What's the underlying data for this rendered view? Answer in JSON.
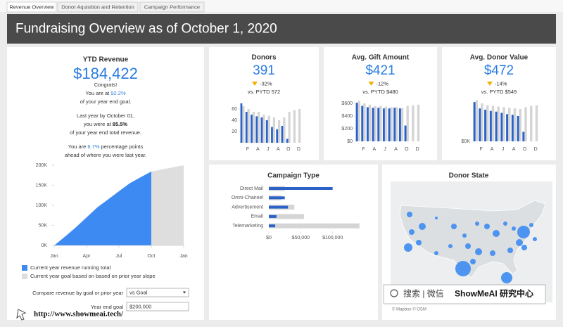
{
  "tabs": [
    "Revenue Overview",
    "Donor Aquisition and Retention",
    "Campaign Performance"
  ],
  "header": {
    "title": "Fundraising Overview as of October 1, 2020"
  },
  "ytd": {
    "title": "YTD Revenue",
    "value": "$184,422",
    "lines": [
      [
        "Congrats!"
      ],
      [
        "You are at ",
        "92.2%"
      ],
      [
        "of your year end goal."
      ],
      [
        "Last year by October 01,"
      ],
      [
        "you were at ",
        "85.5%"
      ],
      [
        "of your year end total revenue."
      ],
      [
        "You are ",
        "6.7%",
        " percentage points"
      ],
      [
        "ahead of where you were last year."
      ]
    ]
  },
  "controls": {
    "compare_label": "Compare revenue  by goal or prior year",
    "compare_value": "vs Goal",
    "goal_label": "Year end goal",
    "goal_value": "$200,000"
  },
  "map": {
    "title": "Donor State",
    "attribution": "© Mapbox © OSM"
  },
  "watermark": {
    "search": "搜索 | 微信",
    "brand": "ShowMeAI 研究中心",
    "url": "http://www.showmeai.tech/"
  },
  "chart_data": [
    {
      "type": "area",
      "xlim": [
        0,
        12
      ],
      "xticks": [
        {
          "value": 0,
          "label": "Jan"
        },
        {
          "value": 3,
          "label": "Apr"
        },
        {
          "value": 6,
          "label": "Jul"
        },
        {
          "value": 9,
          "label": "Oct"
        },
        {
          "value": 12,
          "label": "Jan"
        }
      ],
      "ylim": [
        0,
        200000
      ],
      "yticks": [
        {
          "value": 0,
          "label": "0K"
        },
        {
          "value": 50000,
          "label": "50K"
        },
        {
          "value": 100000,
          "label": "100K"
        },
        {
          "value": 150000,
          "label": "150K"
        },
        {
          "value": 200000,
          "label": "200K"
        }
      ],
      "series": [
        {
          "name": "Current year goal based on based on prior year slope",
          "color": "#dedede",
          "x": [
            9,
            12
          ],
          "values": [
            184422,
            200000
          ]
        },
        {
          "name": "Current year revenue running total",
          "color": "#3d8bf2",
          "x": [
            0,
            1,
            2,
            3,
            4,
            5,
            6,
            7,
            8,
            9
          ],
          "values": [
            0,
            22000,
            45000,
            70000,
            95000,
            115000,
            135000,
            155000,
            170000,
            184422
          ]
        }
      ]
    },
    {
      "type": "bar",
      "title": "Donors",
      "kpi": "391",
      "change": "-32%",
      "comparison": "vs. PYTD 572",
      "categories": [
        null,
        "F",
        null,
        "A",
        null,
        "J",
        null,
        "A",
        null,
        "O",
        null,
        "D"
      ],
      "ylim": [
        0,
        75
      ],
      "yticks": [
        20,
        40,
        60
      ],
      "series": [
        {
          "color": "#2a62c9",
          "values": [
            70,
            55,
            50,
            47,
            45,
            40,
            28,
            24,
            30,
            7,
            null,
            null
          ]
        },
        {
          "color": "#d5d5d5",
          "values": [
            65,
            60,
            55,
            55,
            50,
            48,
            45,
            40,
            45,
            55,
            58,
            60
          ]
        }
      ]
    },
    {
      "type": "bar",
      "title": "Avg. Gift Amount",
      "kpi": "$421",
      "change": "-12%",
      "comparison": "vs. PYTD $480",
      "categories": [
        null,
        "F",
        null,
        "A",
        null,
        "J",
        null,
        "A",
        null,
        "O",
        null,
        "D"
      ],
      "ylim": [
        0,
        700
      ],
      "yticks": [
        {
          "value": 0,
          "label": "$0"
        },
        {
          "value": 200,
          "label": "$200"
        },
        {
          "value": 400,
          "label": "$400"
        },
        {
          "value": 600,
          "label": "$600"
        }
      ],
      "series": [
        {
          "color": "#2a62c9",
          "values": [
            610,
            560,
            540,
            530,
            530,
            520,
            520,
            530,
            520,
            250,
            null,
            null
          ]
        },
        {
          "color": "#d5d5d5",
          "values": [
            640,
            600,
            580,
            560,
            560,
            550,
            540,
            540,
            530,
            560,
            570,
            580
          ]
        }
      ]
    },
    {
      "type": "bar",
      "title": "Avg. Donor Value",
      "kpi": "$472",
      "change": "-14%",
      "comparison": "vs. PYTD $549",
      "categories": [
        null,
        "F",
        null,
        "A",
        null,
        "J",
        null,
        "A",
        null,
        "O",
        null,
        "D"
      ],
      "ylim": [
        0,
        700
      ],
      "yticks": [
        {
          "value": 0,
          "label": "$0K"
        }
      ],
      "series": [
        {
          "color": "#2a62c9",
          "values": [
            620,
            520,
            500,
            480,
            470,
            450,
            430,
            420,
            400,
            150,
            null,
            null
          ]
        },
        {
          "color": "#d5d5d5",
          "values": [
            650,
            600,
            570,
            560,
            550,
            540,
            530,
            520,
            510,
            540,
            560,
            570
          ]
        }
      ]
    },
    {
      "type": "barh",
      "title": "Campaign Type",
      "categories": [
        "Direct Mail",
        "Omni-Channel",
        "Advertisement",
        "Email",
        "Telemarketing"
      ],
      "xlim": [
        0,
        150000
      ],
      "xticks": [
        {
          "value": 0,
          "label": "$0"
        },
        {
          "value": 50000,
          "label": "$50,000"
        },
        {
          "value": 100000,
          "label": "$100,000"
        }
      ],
      "series": [
        {
          "color": "#d5d5d5",
          "values": [
            25000,
            20000,
            40000,
            55000,
            142000
          ]
        },
        {
          "color": "#2a62c9",
          "values": [
            100000,
            25000,
            30000,
            12000,
            10000
          ]
        }
      ]
    }
  ]
}
